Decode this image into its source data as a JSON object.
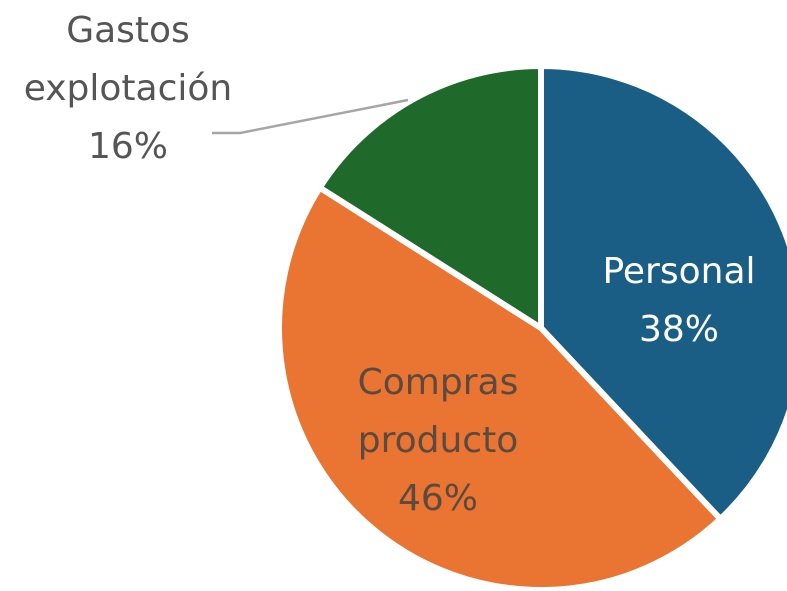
{
  "chart_data": {
    "type": "pie",
    "title": "",
    "slices": [
      {
        "label_lines": [
          "Personal"
        ],
        "percent_label": "38%",
        "value": 38,
        "color": "#1a5e86",
        "label_color": "#ffffff"
      },
      {
        "label_lines": [
          "Compras",
          "producto"
        ],
        "percent_label": "46%",
        "value": 46,
        "color": "#ea7432",
        "label_color": "#5a4a3f"
      },
      {
        "label_lines": [
          "Gastos",
          "explotación"
        ],
        "percent_label": "16%",
        "value": 16,
        "color": "#1f6a2b",
        "label_color": "#555555"
      }
    ],
    "start_angle_deg": 0,
    "direction": "clockwise",
    "legend": "none",
    "background": "#ffffff"
  }
}
